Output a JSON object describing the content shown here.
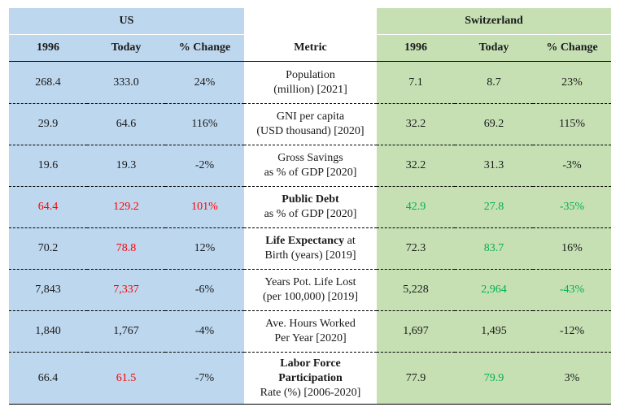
{
  "header": {
    "us": "US",
    "switzerland": "Switzerland",
    "col_1996": "1996",
    "col_today": "Today",
    "col_change": "% Change",
    "col_metric": "Metric"
  },
  "colors": {
    "us_bg": "#bdd7ee",
    "ch_bg": "#c6e0b4",
    "red": "#ff0000",
    "green": "#00b050"
  },
  "rows": [
    {
      "us_1996": "268.4",
      "us_today": "333.0",
      "us_change": "24%",
      "metric_bold": "",
      "metric_line1": "Population",
      "metric_line2": "(million) [2021]",
      "ch_1996": "7.1",
      "ch_today": "8.7",
      "ch_change": "23%"
    },
    {
      "us_1996": "29.9",
      "us_today": "64.6",
      "us_change": "116%",
      "metric_bold": "",
      "metric_line1": "GNI per capita",
      "metric_line2": "(USD thousand) [2020]",
      "ch_1996": "32.2",
      "ch_today": "69.2",
      "ch_change": "115%"
    },
    {
      "us_1996": "19.6",
      "us_today": "19.3",
      "us_change": "-2%",
      "metric_bold": "",
      "metric_line1": "Gross Savings",
      "metric_line2": "as % of GDP [2020]",
      "ch_1996": "32.2",
      "ch_today": "31.3",
      "ch_change": "-3%"
    },
    {
      "us_1996": "64.4",
      "us_today": "129.2",
      "us_change": "101%",
      "metric_bold": "Public Debt",
      "metric_line1": "",
      "metric_line2": "as % of GDP [2020]",
      "ch_1996": "42.9",
      "ch_today": "27.8",
      "ch_change": "-35%"
    },
    {
      "us_1996": "70.2",
      "us_today": "78.8",
      "us_change": "12%",
      "metric_bold": "Life Expectancy",
      "metric_line1": " at",
      "metric_line2": "Birth (years) [2019]",
      "ch_1996": "72.3",
      "ch_today": "83.7",
      "ch_change": "16%"
    },
    {
      "us_1996": "7,843",
      "us_today": "7,337",
      "us_change": "-6%",
      "metric_bold": "",
      "metric_line1": "Years Pot. Life Lost",
      "metric_line2": "(per 100,000) [2019]",
      "ch_1996": "5,228",
      "ch_today": "2,964",
      "ch_change": "-43%"
    },
    {
      "us_1996": "1,840",
      "us_today": "1,767",
      "us_change": "-4%",
      "metric_bold": "",
      "metric_line1": "Ave. Hours Worked",
      "metric_line2": "Per Year [2020]",
      "ch_1996": "1,697",
      "ch_today": "1,495",
      "ch_change": "-12%"
    },
    {
      "us_1996": "66.4",
      "us_today": "61.5",
      "us_change": "-7%",
      "metric_bold": "Labor Force",
      "metric_bold2": "Participation",
      "metric_line2": "Rate (%) [2006-2020]",
      "ch_1996": "77.9",
      "ch_today": "79.9",
      "ch_change": "3%"
    }
  ]
}
